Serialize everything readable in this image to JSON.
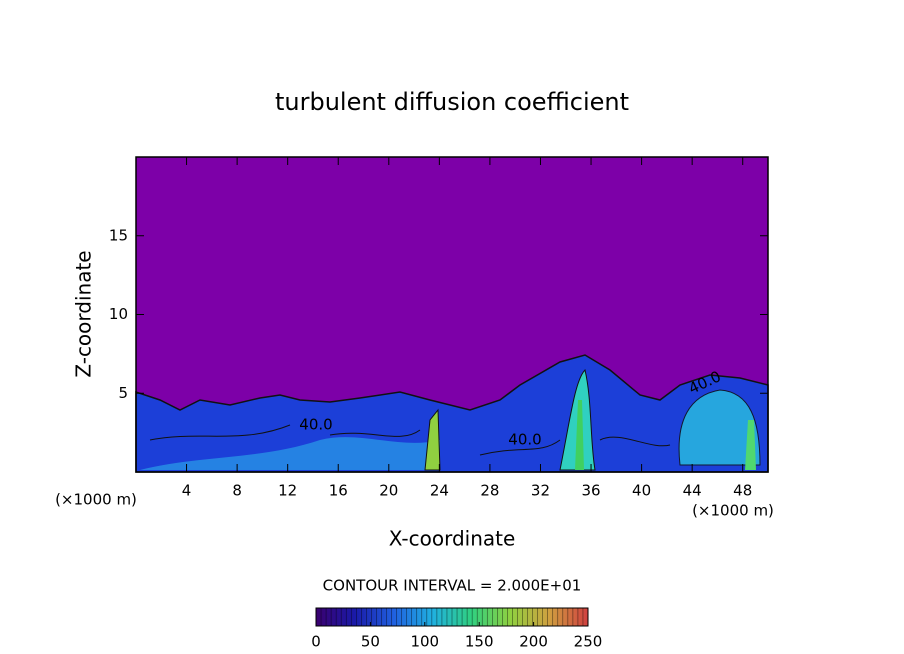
{
  "chart_data": {
    "type": "contour",
    "title": "turbulent diffusion coefficient",
    "x_label": "X-coordinate",
    "y_label": "Z-coordinate",
    "x_unit": "(×1000 m)",
    "y_unit": "(×1000 m)",
    "xlim": [
      0,
      50
    ],
    "ylim": [
      0,
      20
    ],
    "xticks": [
      4,
      8,
      12,
      16,
      20,
      24,
      28,
      32,
      36,
      40,
      44,
      48
    ],
    "yticks": [
      5,
      10,
      15
    ],
    "contour_labels": [
      "40.0",
      "40.0",
      "40.0"
    ],
    "contour_interval": "CONTOUR INTERVAL = 2.000E+01",
    "colorbar": {
      "range": [
        0,
        250
      ],
      "ticks": [
        0,
        50,
        100,
        150,
        200,
        250
      ],
      "colors": [
        "#3a006f",
        "#1a1aa8",
        "#2060e0",
        "#20b0e0",
        "#30d080",
        "#90d040",
        "#d0a040",
        "#d04040"
      ]
    }
  }
}
